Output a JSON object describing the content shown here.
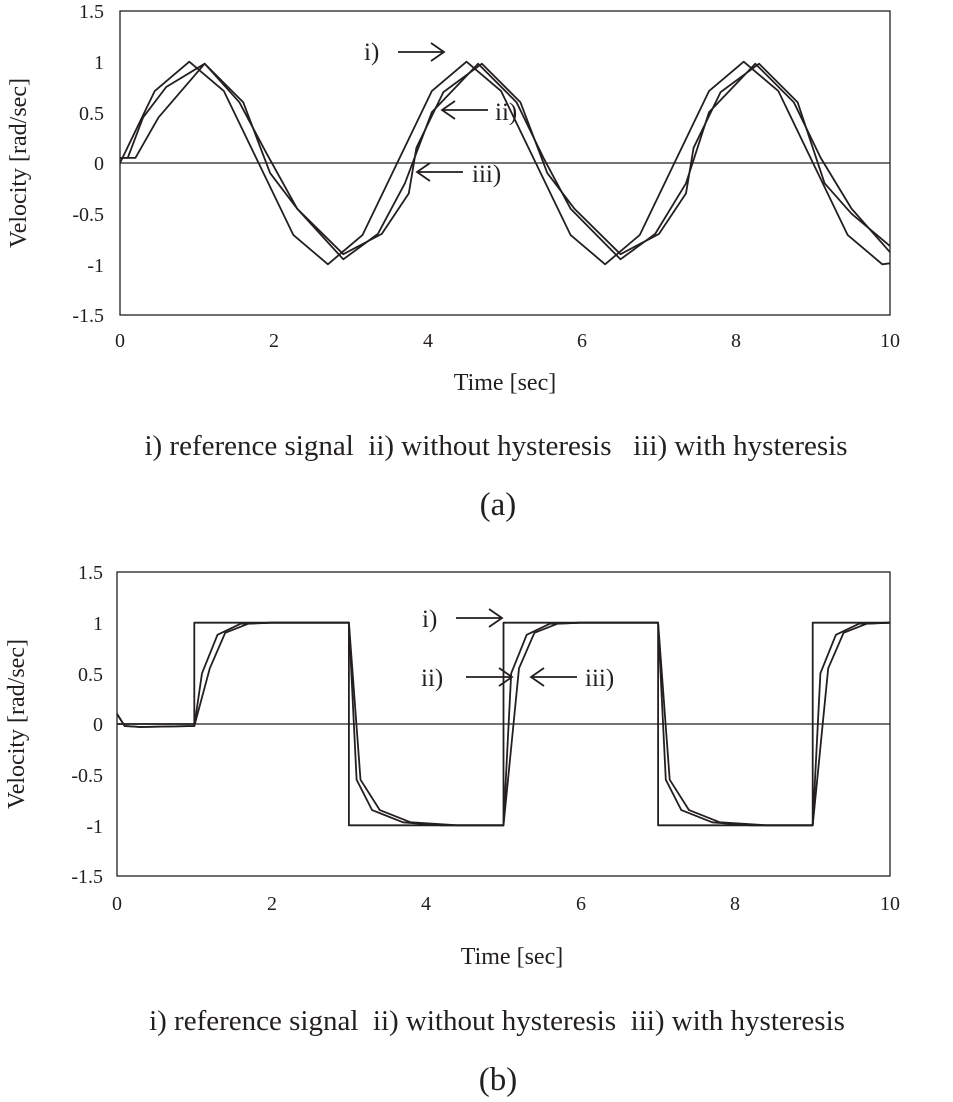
{
  "chart_data": [
    {
      "type": "line",
      "panel_label": "(a)",
      "xlabel": "Time [sec]",
      "ylabel": "Velocity [rad/sec]",
      "xlim": [
        0,
        10
      ],
      "ylim": [
        -1.5,
        1.5
      ],
      "x_ticks": [
        "0",
        "2",
        "4",
        "6",
        "8",
        "10"
      ],
      "y_ticks": [
        "1.5",
        "1",
        "0.5",
        "0",
        "-0.5",
        "-1",
        "-1.5"
      ],
      "grid": false,
      "zero_line": true,
      "legend_text": "i) reference signal  ii) without hysteresis   iii) with hysteresis",
      "series": [
        {
          "name": "i)",
          "x": [
            0,
            0.45,
            0.9,
            1.35,
            1.8,
            2.25,
            2.7,
            3.15,
            3.6,
            4.05,
            4.5,
            4.95,
            5.4,
            5.85,
            6.3,
            6.75,
            7.2,
            7.65,
            8.1,
            8.55,
            9.0,
            9.45,
            9.9,
            10
          ],
          "y": [
            0,
            0.71,
            1.0,
            0.71,
            0.0,
            -0.71,
            -1.0,
            -0.71,
            0.0,
            0.71,
            1.0,
            0.71,
            0.0,
            -0.71,
            -1.0,
            -0.71,
            0.0,
            0.71,
            1.0,
            0.71,
            0.0,
            -0.71,
            -1.0,
            -0.99
          ]
        },
        {
          "name": "ii)",
          "x": [
            0,
            0.1,
            0.3,
            0.6,
            1.1,
            1.55,
            1.9,
            2.3,
            2.9,
            3.35,
            3.7,
            4.05,
            4.65,
            5.15,
            5.5,
            5.85,
            6.5,
            6.95,
            7.35,
            7.65,
            8.25,
            8.75,
            9.1,
            9.5,
            10
          ],
          "y": [
            0.05,
            0.05,
            0.45,
            0.75,
            0.98,
            0.6,
            0.1,
            -0.45,
            -0.95,
            -0.7,
            -0.2,
            0.5,
            0.98,
            0.6,
            0.05,
            -0.45,
            -0.95,
            -0.7,
            -0.2,
            0.5,
            0.98,
            0.6,
            0.05,
            -0.45,
            -0.88
          ]
        },
        {
          "name": "iii)",
          "x": [
            0,
            0.2,
            0.5,
            1.1,
            1.6,
            1.95,
            2.3,
            2.9,
            3.4,
            3.75,
            3.85,
            4.2,
            4.7,
            5.2,
            5.55,
            5.9,
            6.5,
            7.0,
            7.35,
            7.45,
            7.8,
            8.3,
            8.8,
            9.15,
            9.5,
            10
          ],
          "y": [
            0.05,
            0.05,
            0.45,
            0.98,
            0.6,
            -0.1,
            -0.45,
            -0.9,
            -0.7,
            -0.3,
            0.15,
            0.7,
            0.98,
            0.6,
            -0.1,
            -0.45,
            -0.9,
            -0.7,
            -0.3,
            0.15,
            0.7,
            0.98,
            0.6,
            -0.2,
            -0.5,
            -0.82
          ]
        }
      ],
      "annotations": [
        {
          "text": "i)",
          "arrow": "right",
          "x": 4.0,
          "y": 1.12
        },
        {
          "text": "ii)",
          "arrow": "left",
          "x": 4.2,
          "y": 0.5
        },
        {
          "text": "iii)",
          "arrow": "left",
          "x": 3.9,
          "y": -0.1
        }
      ]
    },
    {
      "type": "line",
      "panel_label": "(b)",
      "xlabel": "Time [sec]",
      "ylabel": "Velocity [rad/sec]",
      "xlim": [
        0,
        10
      ],
      "ylim": [
        -1.5,
        1.5
      ],
      "x_ticks": [
        "0",
        "2",
        "4",
        "6",
        "8",
        "10"
      ],
      "y_ticks": [
        "1.5",
        "1",
        "0.5",
        "0",
        "-0.5",
        "-1",
        "-1.5"
      ],
      "grid": false,
      "zero_line": true,
      "legend_text": "i) reference signal  ii) without hysteresis  iii) with hysteresis",
      "series": [
        {
          "name": "i)",
          "x": [
            0,
            1,
            1,
            3,
            3,
            5,
            5,
            7,
            7,
            9,
            9,
            10
          ],
          "y": [
            0,
            0,
            1,
            1,
            -1,
            -1,
            1,
            1,
            -1,
            -1,
            1,
            1
          ]
        },
        {
          "name": "ii)",
          "x": [
            0,
            0.1,
            0.3,
            1.0,
            1.1,
            1.3,
            1.6,
            2.0,
            3.0,
            3.1,
            3.3,
            3.7,
            4.2,
            5.0,
            5.1,
            5.3,
            5.6,
            6.0,
            7.0,
            7.1,
            7.3,
            7.7,
            8.2,
            9.0,
            9.1,
            9.3,
            9.6,
            10
          ],
          "y": [
            0.1,
            -0.02,
            -0.03,
            -0.02,
            0.5,
            0.88,
            0.99,
            1.0,
            1.0,
            -0.55,
            -0.85,
            -0.97,
            -1.0,
            -1.0,
            0.5,
            0.88,
            0.99,
            1.0,
            1.0,
            -0.55,
            -0.85,
            -0.97,
            -1.0,
            -1.0,
            0.5,
            0.88,
            0.99,
            1.0
          ]
        },
        {
          "name": "iii)",
          "x": [
            0,
            0.1,
            0.3,
            1.0,
            1.2,
            1.4,
            1.7,
            2.0,
            3.0,
            3.15,
            3.4,
            3.8,
            4.4,
            5.0,
            5.2,
            5.4,
            5.7,
            6.0,
            7.0,
            7.15,
            7.4,
            7.8,
            8.4,
            9.0,
            9.2,
            9.4,
            9.7,
            10
          ],
          "y": [
            0.1,
            -0.02,
            -0.03,
            -0.02,
            0.55,
            0.9,
            0.99,
            1.0,
            1.0,
            -0.55,
            -0.85,
            -0.97,
            -1.0,
            -1.0,
            0.55,
            0.9,
            0.99,
            1.0,
            1.0,
            -0.55,
            -0.85,
            -0.97,
            -1.0,
            -1.0,
            0.55,
            0.9,
            0.99,
            1.0
          ]
        }
      ],
      "annotations": [
        {
          "text": "i)",
          "arrow": "right",
          "x": 5.0,
          "y": 1.02
        },
        {
          "text": "ii)",
          "arrow": "right",
          "x": 5.1,
          "y": 0.45
        },
        {
          "text": "iii)",
          "arrow": "left",
          "x": 5.2,
          "y": 0.45
        }
      ]
    }
  ]
}
